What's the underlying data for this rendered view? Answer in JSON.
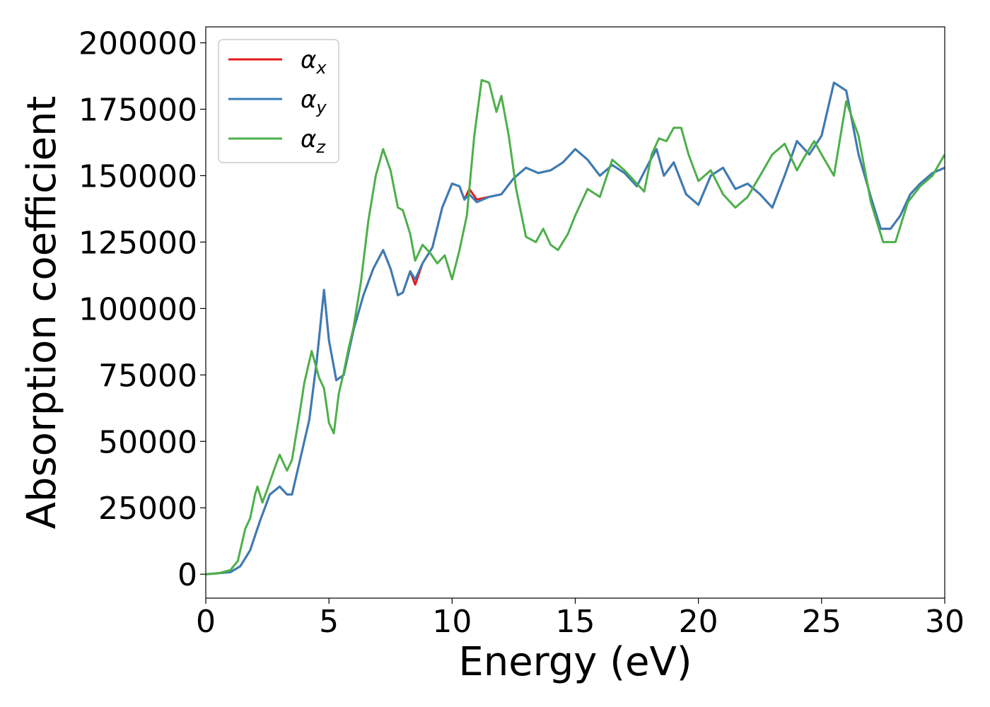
{
  "chart_data": {
    "type": "line",
    "title": "",
    "xlabel": "Energy (eV)",
    "ylabel": "Absorption coefficient",
    "xlim": [
      0,
      30
    ],
    "ylim": [
      -9000,
      206000
    ],
    "x_ticks": [
      0,
      5,
      10,
      15,
      20,
      25,
      30
    ],
    "y_ticks": [
      0,
      25000,
      50000,
      75000,
      100000,
      125000,
      150000,
      175000,
      200000
    ],
    "grid": false,
    "legend_position": "top-left",
    "series": [
      {
        "name": "α_x",
        "legend_base": "α",
        "legend_sub": "x",
        "color": "#e41a1c",
        "x": [
          0,
          0.5,
          1,
          1.4,
          1.8,
          2.2,
          2.6,
          3.0,
          3.3,
          3.5,
          3.8,
          4.2,
          4.5,
          4.8,
          5.0,
          5.3,
          5.6,
          6.0,
          6.4,
          6.8,
          7.2,
          7.5,
          7.8,
          8.0,
          8.3,
          8.5,
          8.8,
          9.2,
          9.6,
          10.0,
          10.3,
          10.5,
          10.7,
          11.0,
          11.5,
          12.0,
          12.5,
          13.0,
          13.5,
          14.0,
          14.5,
          15.0,
          15.5,
          16.0,
          16.5,
          17.0,
          17.5,
          18.0,
          18.3,
          18.6,
          19.0,
          19.5,
          20.0,
          20.5,
          21.0,
          21.5,
          22.0,
          22.5,
          23.0,
          23.5,
          24.0,
          24.5,
          25.0,
          25.5,
          26.0,
          26.5,
          27.0,
          27.4,
          27.8,
          28.2,
          28.6,
          29.0,
          29.5,
          30.0
        ],
        "values": [
          0,
          400,
          800,
          3000,
          9000,
          20000,
          30000,
          33000,
          30000,
          30000,
          42000,
          58000,
          80000,
          107000,
          88000,
          73000,
          75000,
          92000,
          105000,
          115000,
          122000,
          115000,
          105000,
          106000,
          114000,
          109000,
          117000,
          123000,
          138000,
          147000,
          146000,
          141000,
          145000,
          141000,
          142000,
          143000,
          149000,
          153000,
          151000,
          152000,
          155000,
          160000,
          156000,
          150000,
          154000,
          151000,
          146000,
          155000,
          160000,
          150000,
          155000,
          143000,
          139000,
          150000,
          153000,
          145000,
          147000,
          143000,
          138000,
          150000,
          163000,
          158000,
          165000,
          185000,
          182000,
          158000,
          142000,
          130000,
          130000,
          135000,
          143000,
          147000,
          151000,
          153000
        ]
      },
      {
        "name": "α_y",
        "legend_base": "α",
        "legend_sub": "y",
        "color": "#377eb8",
        "x": [
          0,
          0.5,
          1,
          1.4,
          1.8,
          2.2,
          2.6,
          3.0,
          3.3,
          3.5,
          3.8,
          4.2,
          4.5,
          4.8,
          5.0,
          5.3,
          5.6,
          6.0,
          6.4,
          6.8,
          7.2,
          7.5,
          7.8,
          8.0,
          8.3,
          8.5,
          8.8,
          9.2,
          9.6,
          10.0,
          10.3,
          10.5,
          10.7,
          11.0,
          11.5,
          12.0,
          12.5,
          13.0,
          13.5,
          14.0,
          14.5,
          15.0,
          15.5,
          16.0,
          16.5,
          17.0,
          17.5,
          18.0,
          18.3,
          18.6,
          19.0,
          19.5,
          20.0,
          20.5,
          21.0,
          21.5,
          22.0,
          22.5,
          23.0,
          23.5,
          24.0,
          24.5,
          25.0,
          25.5,
          26.0,
          26.5,
          27.0,
          27.4,
          27.8,
          28.2,
          28.6,
          29.0,
          29.5,
          30.0
        ],
        "values": [
          0,
          400,
          800,
          3000,
          9000,
          20000,
          30000,
          33000,
          30000,
          30000,
          42000,
          58000,
          80000,
          107000,
          88000,
          73000,
          75000,
          92000,
          105000,
          115000,
          122000,
          115000,
          105000,
          106000,
          114000,
          111000,
          117000,
          123000,
          138000,
          147000,
          146000,
          141000,
          143000,
          140000,
          142000,
          143000,
          149000,
          153000,
          151000,
          152000,
          155000,
          160000,
          156000,
          150000,
          154000,
          151000,
          146000,
          155000,
          160000,
          150000,
          155000,
          143000,
          139000,
          150000,
          153000,
          145000,
          147000,
          143000,
          138000,
          150000,
          163000,
          158000,
          165000,
          185000,
          182000,
          158000,
          142000,
          130000,
          130000,
          135000,
          143000,
          147000,
          151000,
          153000
        ]
      },
      {
        "name": "α_z",
        "legend_base": "α",
        "legend_sub": "z",
        "color": "#4daf4a",
        "x": [
          0,
          0.5,
          1.0,
          1.3,
          1.6,
          1.8,
          2.0,
          2.1,
          2.3,
          2.5,
          2.8,
          3.0,
          3.3,
          3.5,
          3.8,
          4.0,
          4.3,
          4.6,
          4.8,
          5.0,
          5.2,
          5.4,
          5.6,
          5.8,
          6.0,
          6.3,
          6.6,
          6.9,
          7.2,
          7.5,
          7.8,
          8.0,
          8.3,
          8.5,
          8.8,
          9.1,
          9.4,
          9.7,
          10.0,
          10.3,
          10.6,
          10.9,
          11.2,
          11.5,
          11.8,
          12.0,
          12.3,
          12.6,
          13.0,
          13.4,
          13.7,
          14.0,
          14.3,
          14.7,
          15.0,
          15.5,
          16.0,
          16.5,
          17.0,
          17.5,
          17.8,
          18.1,
          18.4,
          18.7,
          19.0,
          19.3,
          19.6,
          20.0,
          20.5,
          21.0,
          21.5,
          22.0,
          22.5,
          23.0,
          23.5,
          24.0,
          24.3,
          24.7,
          25.0,
          25.5,
          26.0,
          26.5,
          27.0,
          27.5,
          28.0,
          28.5,
          29.0,
          29.5,
          30.0
        ],
        "values": [
          0,
          300,
          1500,
          5000,
          17000,
          21000,
          30000,
          33000,
          27000,
          32000,
          40000,
          45000,
          39000,
          43000,
          60000,
          72000,
          84000,
          74000,
          70000,
          57000,
          53000,
          68000,
          76000,
          85000,
          93000,
          110000,
          133000,
          150000,
          160000,
          152000,
          138000,
          137000,
          128000,
          118000,
          124000,
          121000,
          117000,
          120000,
          111000,
          122000,
          135000,
          165000,
          186000,
          185000,
          174000,
          180000,
          165000,
          145000,
          127000,
          125000,
          130000,
          124000,
          122000,
          128000,
          135000,
          145000,
          142000,
          156000,
          152000,
          147000,
          144000,
          158000,
          164000,
          163000,
          168000,
          168000,
          158000,
          148000,
          152000,
          143000,
          138000,
          142000,
          150000,
          158000,
          162000,
          152000,
          157000,
          163000,
          158000,
          150000,
          178000,
          165000,
          140000,
          125000,
          125000,
          140000,
          146000,
          150000,
          158000
        ]
      }
    ]
  }
}
